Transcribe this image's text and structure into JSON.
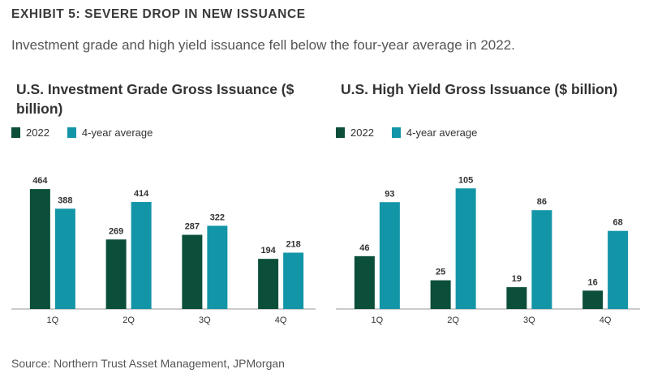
{
  "header": {
    "exhibit": "EXHIBIT 5: SEVERE DROP IN NEW ISSUANCE",
    "subtitle": "Investment grade and high yield issuance fell below the four-year average in 2022."
  },
  "colors": {
    "series_2022": "#0b4f3a",
    "series_avg": "#1395a8"
  },
  "chart_data": [
    {
      "type": "bar",
      "title": "U.S. Investment Grade Gross Issuance ($ billion)",
      "categories": [
        "1Q",
        "2Q",
        "3Q",
        "4Q"
      ],
      "series": [
        {
          "name": "2022",
          "values": [
            464,
            269,
            287,
            194
          ]
        },
        {
          "name": "4-year average",
          "values": [
            388,
            414,
            322,
            218
          ]
        }
      ],
      "ylim": [
        0,
        480
      ],
      "xlabel": "",
      "ylabel": "",
      "grid": false,
      "legend": "top-left"
    },
    {
      "type": "bar",
      "title": "U.S. High Yield Gross Issuance ($ billion)",
      "categories": [
        "1Q",
        "2Q",
        "3Q",
        "4Q"
      ],
      "series": [
        {
          "name": "2022",
          "values": [
            46,
            25,
            19,
            16
          ]
        },
        {
          "name": "4-year average",
          "values": [
            93,
            105,
            86,
            68
          ]
        }
      ],
      "ylim": [
        0,
        108
      ],
      "xlabel": "",
      "ylabel": "",
      "grid": false,
      "legend": "top-left"
    }
  ],
  "footer": {
    "source": "Source: Northern Trust Asset Management, JPMorgan"
  }
}
